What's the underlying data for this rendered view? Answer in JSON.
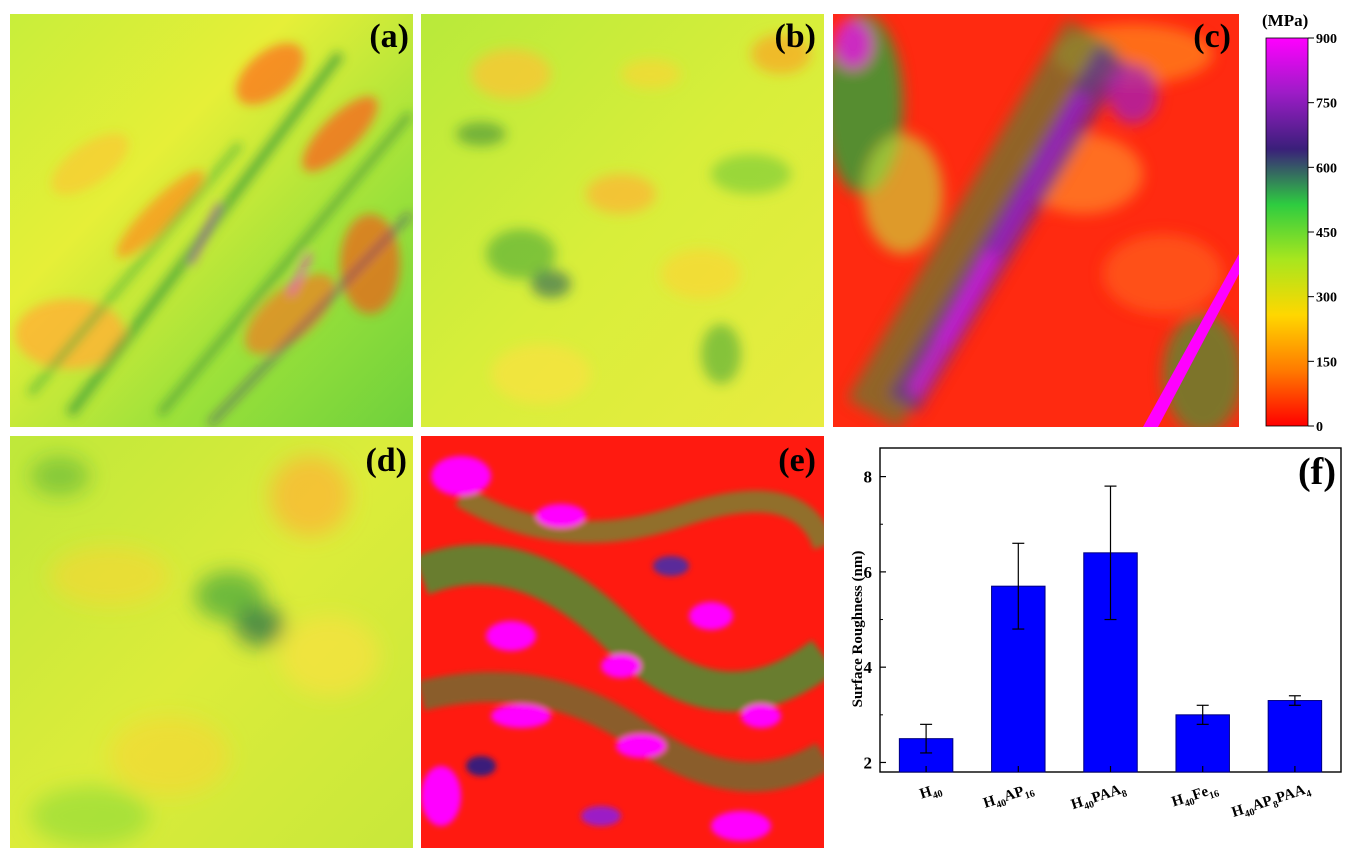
{
  "panels": [
    {
      "id": "a",
      "label": "(a)"
    },
    {
      "id": "b",
      "label": "(b)"
    },
    {
      "id": "c",
      "label": "(c)"
    },
    {
      "id": "d",
      "label": "(d)"
    },
    {
      "id": "e",
      "label": "(e)"
    }
  ],
  "colorbar": {
    "unit": "(MPa)",
    "ticks": [
      0,
      150,
      300,
      450,
      600,
      750,
      900
    ],
    "colors": [
      "#ff0000",
      "#ff7a00",
      "#ffd700",
      "#a8e61e",
      "#2ecc40",
      "#3a1f7a",
      "#9c1cc6",
      "#ff00ff"
    ]
  },
  "colors": {
    "bar_fill": "#0000ff",
    "bar_stroke": "#000080"
  },
  "chart_data": {
    "type": "bar",
    "panel_label": "(f)",
    "ylabel": "Surface Roughness (nm)",
    "xlabel": "",
    "ylim": [
      1.8,
      8.6
    ],
    "yticks": [
      2,
      4,
      6,
      8
    ],
    "categories": [
      {
        "base": "H",
        "parts": [
          [
            "40",
            "sub"
          ]
        ]
      },
      {
        "base": "H",
        "parts": [
          [
            "40",
            "sub"
          ],
          [
            "AP",
            ""
          ],
          [
            "16",
            "sub"
          ]
        ]
      },
      {
        "base": "H",
        "parts": [
          [
            "40",
            "sub"
          ],
          [
            "PAA",
            ""
          ],
          [
            "8",
            "sub"
          ]
        ]
      },
      {
        "base": "H",
        "parts": [
          [
            "40",
            "sub"
          ],
          [
            "Fe",
            ""
          ],
          [
            "16",
            "sub"
          ]
        ]
      },
      {
        "base": "H",
        "parts": [
          [
            "40",
            "sub"
          ],
          [
            "AP",
            ""
          ],
          [
            "8",
            "sub"
          ],
          [
            "PAA",
            ""
          ],
          [
            "4",
            "sub"
          ]
        ]
      }
    ],
    "values": [
      2.5,
      5.7,
      6.4,
      3.0,
      3.3
    ],
    "errors": [
      0.3,
      0.9,
      1.4,
      0.2,
      0.1
    ]
  }
}
